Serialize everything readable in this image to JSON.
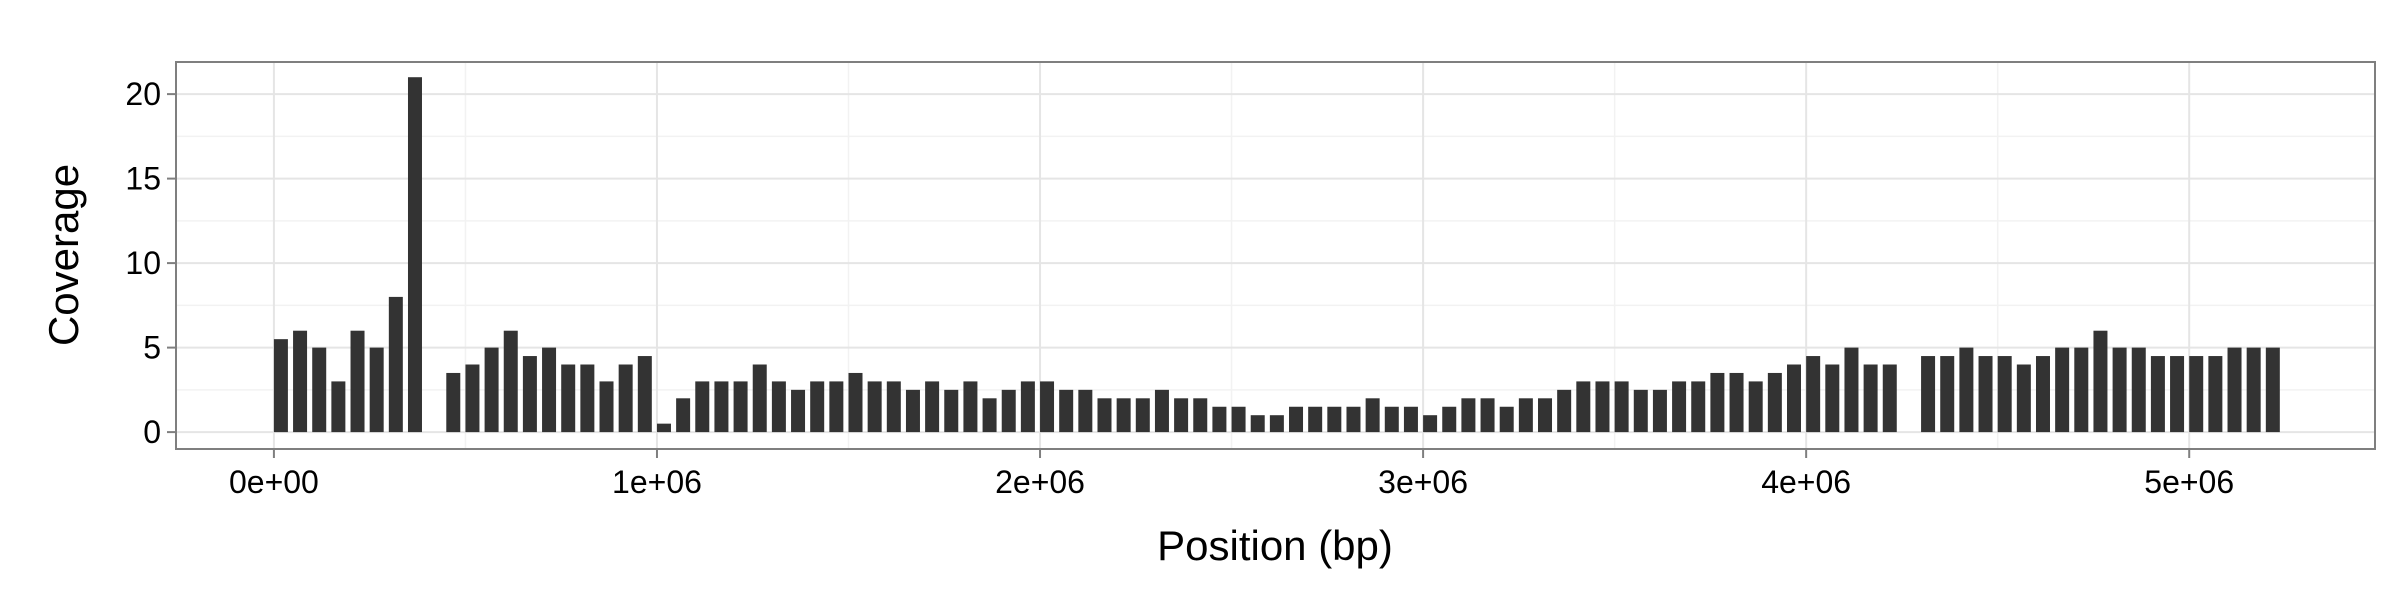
{
  "chart_data": {
    "type": "bar",
    "color": "#333333",
    "grid": true,
    "xlabel": "Position (bp)",
    "ylabel": "Coverage",
    "xlim": [
      -255600,
      5485000
    ],
    "ylim": [
      -1.0,
      21.9
    ],
    "xticks": [
      {
        "value": 0,
        "label": "0e+00"
      },
      {
        "value": 1000000,
        "label": "1e+06"
      },
      {
        "value": 2000000,
        "label": "2e+06"
      },
      {
        "value": 3000000,
        "label": "3e+06"
      },
      {
        "value": 4000000,
        "label": "4e+06"
      },
      {
        "value": 5000000,
        "label": "5e+06"
      }
    ],
    "yticks": [
      0,
      5,
      10,
      15,
      20
    ],
    "x": [
      0,
      50000,
      100000,
      150000,
      200000,
      250000,
      300000,
      350000,
      400000,
      450000,
      500000,
      550000,
      600000,
      650000,
      700000,
      750000,
      800000,
      850000,
      900000,
      950000,
      1000000,
      1050000,
      1100000,
      1150000,
      1200000,
      1250000,
      1300000,
      1350000,
      1400000,
      1450000,
      1500000,
      1550000,
      1600000,
      1650000,
      1700000,
      1750000,
      1800000,
      1850000,
      1900000,
      1950000,
      2000000,
      2050000,
      2100000,
      2150000,
      2200000,
      2250000,
      2300000,
      2350000,
      2400000,
      2450000,
      2500000,
      2550000,
      2600000,
      2650000,
      2700000,
      2750000,
      2800000,
      2850000,
      2900000,
      2950000,
      3000000,
      3050000,
      3100000,
      3150000,
      3200000,
      3250000,
      3300000,
      3350000,
      3400000,
      3450000,
      3500000,
      3550000,
      3600000,
      3650000,
      3700000,
      3750000,
      3800000,
      3850000,
      3900000,
      3950000,
      4000000,
      4050000,
      4100000,
      4150000,
      4200000,
      4250000,
      4300000,
      4350000,
      4400000,
      4450000,
      4500000,
      4550000,
      4600000,
      4650000,
      4700000,
      4750000,
      4800000,
      4850000,
      4900000,
      4950000,
      5000000,
      5050000,
      5100000,
      5150000,
      5200000
    ],
    "values": [
      5.5,
      6,
      5,
      3,
      6,
      5,
      8,
      21,
      0,
      3.5,
      4,
      5,
      6,
      4.5,
      5,
      4,
      4,
      3,
      4,
      4.5,
      0.5,
      2,
      3,
      3,
      3,
      4,
      3,
      2.5,
      3,
      3,
      3.5,
      3,
      3,
      2.5,
      3,
      2.5,
      3,
      2,
      2.5,
      3,
      3,
      2.5,
      2.5,
      2,
      2,
      2,
      2.5,
      2,
      2,
      1.5,
      1.5,
      1,
      1,
      1.5,
      1.5,
      1.5,
      1.5,
      2,
      1.5,
      1.5,
      1,
      1.5,
      2,
      2,
      1.5,
      2,
      2,
      2.5,
      3,
      3,
      3,
      2.5,
      2.5,
      3,
      3,
      3.5,
      3.5,
      3,
      3.5,
      4,
      4.5,
      4,
      5,
      4,
      4,
      0,
      4.5,
      4.5,
      5,
      4.5,
      4.5,
      4,
      4.5,
      5,
      5,
      6,
      5,
      5,
      4.5,
      4.5,
      4.5,
      4.5,
      5,
      5,
      5
    ]
  }
}
